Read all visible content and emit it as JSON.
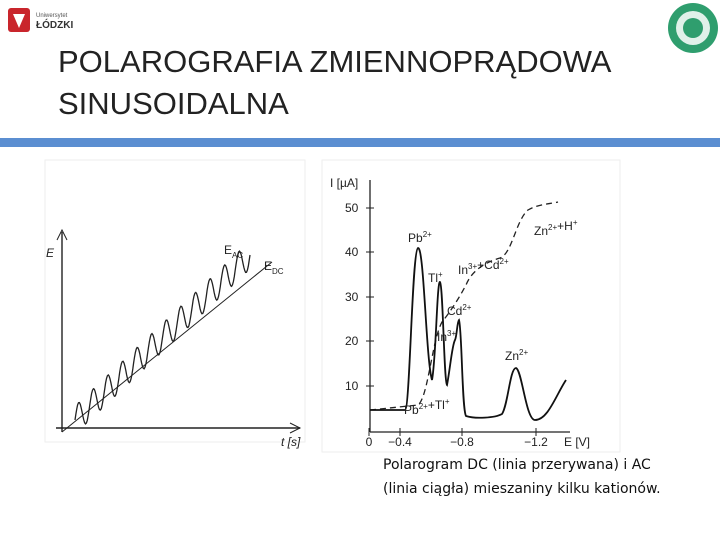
{
  "header": {
    "logo_left": [
      "Uniwersytet",
      "ŁÓDZKI"
    ],
    "title": [
      "POLAROGRAFIA ZMIENNOPRĄDOWA",
      "SINUSOIDALNA"
    ]
  },
  "figure_left": {
    "y_label": "E",
    "labels": [
      [
        {
          "text": "E",
          "sub": "AC"
        }
      ],
      [
        {
          "text": "E",
          "sub": "DC"
        }
      ]
    ],
    "x_label": "t [s]"
  },
  "figure_right": {
    "y_label": "I [µA]",
    "y_ticks": [
      "50",
      "40",
      "30",
      "20",
      "10"
    ],
    "x_ticks": [
      "0",
      "−0.4",
      "−0.8",
      "−1.2"
    ],
    "x_label": "E [V]",
    "labels": [
      [
        {
          "text": "Pb",
          "sup": "2+"
        }
      ],
      [
        {
          "text": "Tl",
          "sup": "+"
        }
      ],
      [
        {
          "text": "In",
          "sup": "3+"
        },
        {
          "text": "+Cd",
          "sup": "2+"
        }
      ],
      [
        {
          "text": "Cd",
          "sup": "2+"
        }
      ],
      [
        {
          "text": "In",
          "sup": "3+"
        }
      ],
      [
        {
          "text": "Zn",
          "sup": "2+"
        },
        {
          "text": "+H",
          "sup": "+"
        }
      ],
      [
        {
          "text": "Zn",
          "sup": "2+"
        }
      ],
      [
        {
          "text": "Pb",
          "sup": "2+"
        },
        {
          "text": "+Tl",
          "sup": "+"
        }
      ]
    ]
  },
  "caption": [
    "Polarogram DC (linia przerywana) i AC",
    "(linia ciągła) mieszaniny kilku kationów."
  ]
}
